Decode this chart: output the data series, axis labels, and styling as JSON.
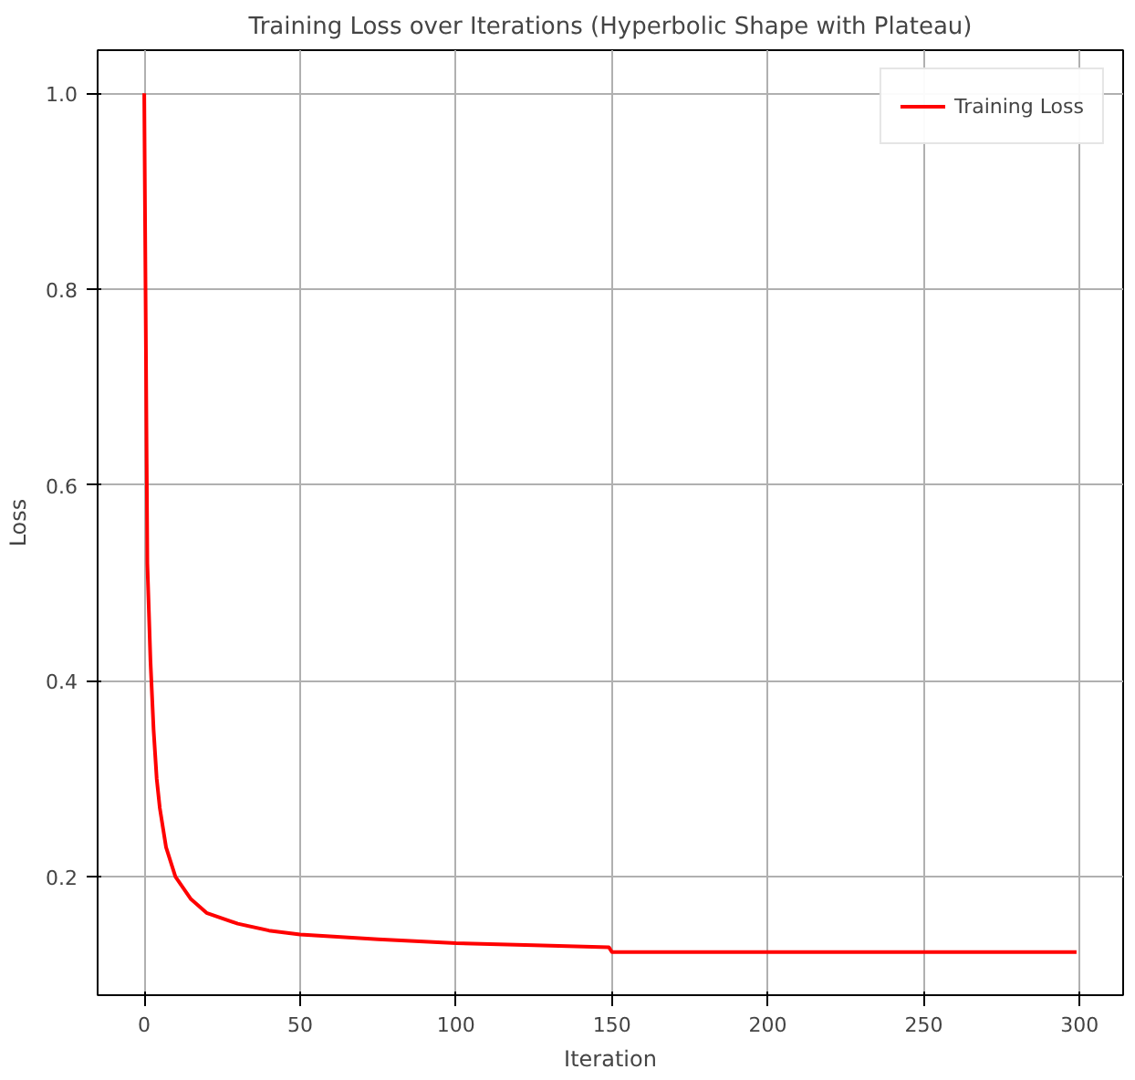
{
  "chart_data": {
    "type": "line",
    "title": "Training Loss over Iterations (Hyperbolic Shape with Plateau)",
    "xlabel": "Iteration",
    "ylabel": "Loss",
    "series": [
      {
        "name": "Training Loss",
        "color": "#ff0000",
        "x": [
          0,
          1,
          2,
          3,
          4,
          5,
          7,
          10,
          15,
          20,
          30,
          40,
          50,
          75,
          100,
          125,
          149,
          150,
          200,
          250,
          299
        ],
        "values": [
          1.0,
          0.52,
          0.42,
          0.35,
          0.3,
          0.27,
          0.23,
          0.2,
          0.177,
          0.163,
          0.152,
          0.145,
          0.141,
          0.136,
          0.132,
          0.13,
          0.128,
          0.123,
          0.123,
          0.123,
          0.123
        ]
      }
    ],
    "xlim": [
      -14.95,
      313.95
    ],
    "ylim": [
      0.079,
      1.044
    ],
    "xticks": [
      0,
      50,
      100,
      150,
      200,
      250,
      300
    ],
    "yticks": [
      0.2,
      0.4,
      0.6,
      0.8,
      {
        "value": 1,
        "label": "1.0"
      }
    ],
    "grid": true,
    "legend": "top right",
    "line_style": "solid",
    "marker": "none"
  }
}
